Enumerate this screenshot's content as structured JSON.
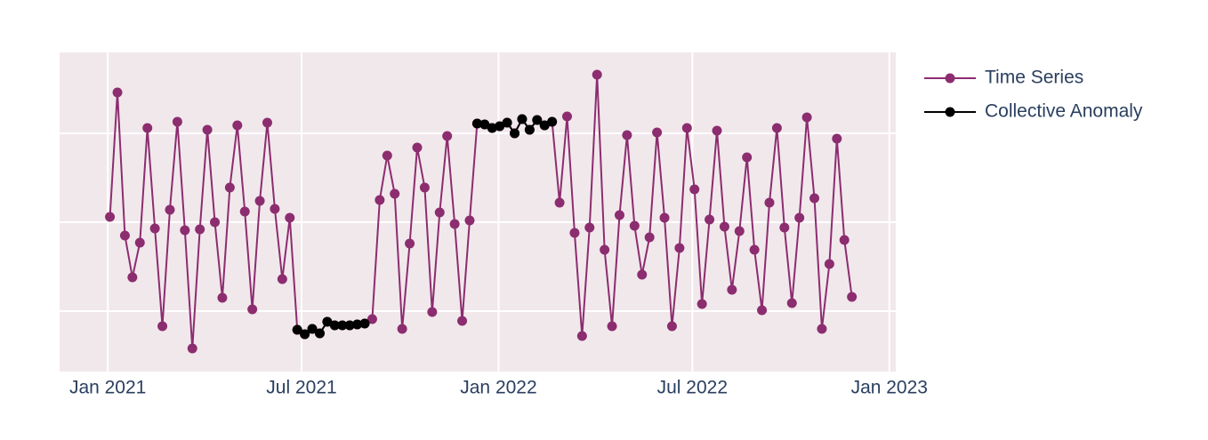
{
  "chart_data": {
    "type": "line",
    "x": [
      "2021-01-03",
      "2021-01-10",
      "2021-01-17",
      "2021-01-24",
      "2021-01-31",
      "2021-02-07",
      "2021-02-14",
      "2021-02-21",
      "2021-02-28",
      "2021-03-07",
      "2021-03-14",
      "2021-03-21",
      "2021-03-28",
      "2021-04-04",
      "2021-04-11",
      "2021-04-18",
      "2021-04-25",
      "2021-05-02",
      "2021-05-09",
      "2021-05-16",
      "2021-05-23",
      "2021-05-30",
      "2021-06-06",
      "2021-06-13",
      "2021-06-20",
      "2021-06-27",
      "2021-07-04",
      "2021-07-11",
      "2021-07-18",
      "2021-07-25",
      "2021-08-01",
      "2021-08-08",
      "2021-08-15",
      "2021-08-22",
      "2021-08-29",
      "2021-09-05",
      "2021-09-12",
      "2021-09-19",
      "2021-09-26",
      "2021-10-03",
      "2021-10-10",
      "2021-10-17",
      "2021-10-24",
      "2021-10-31",
      "2021-11-07",
      "2021-11-14",
      "2021-11-21",
      "2021-11-28",
      "2021-12-05",
      "2021-12-12",
      "2021-12-19",
      "2021-12-26",
      "2022-01-02",
      "2022-01-09",
      "2022-01-16",
      "2022-01-23",
      "2022-01-30",
      "2022-02-06",
      "2022-02-13",
      "2022-02-20",
      "2022-02-27",
      "2022-03-06",
      "2022-03-13",
      "2022-03-20",
      "2022-03-27",
      "2022-04-03",
      "2022-04-10",
      "2022-04-17",
      "2022-04-24",
      "2022-05-01",
      "2022-05-08",
      "2022-05-15",
      "2022-05-22",
      "2022-05-29",
      "2022-06-05",
      "2022-06-12",
      "2022-06-19",
      "2022-06-26",
      "2022-07-03",
      "2022-07-10",
      "2022-07-17",
      "2022-07-24",
      "2022-07-31",
      "2022-08-07",
      "2022-08-14",
      "2022-08-21",
      "2022-08-28",
      "2022-09-04",
      "2022-09-11",
      "2022-09-18",
      "2022-09-25",
      "2022-10-02",
      "2022-10-09",
      "2022-10-16",
      "2022-10-23",
      "2022-10-30",
      "2022-11-06",
      "2022-11-13",
      "2022-11-20",
      "2022-11-27"
    ],
    "series": [
      {
        "name": "Time Series",
        "color": "#8c2d6f",
        "values": [
          2.06,
          3.46,
          1.85,
          1.38,
          1.77,
          3.06,
          1.93,
          0.83,
          2.14,
          3.13,
          1.91,
          0.58,
          1.92,
          3.04,
          2.0,
          1.15,
          2.39,
          3.09,
          2.12,
          1.02,
          2.24,
          3.12,
          2.15,
          1.36,
          2.05,
          0.79,
          0.74,
          0.8,
          0.75,
          0.88,
          0.84,
          0.84,
          0.84,
          0.85,
          0.86,
          0.91,
          2.25,
          2.75,
          2.32,
          0.8,
          1.76,
          2.84,
          2.39,
          0.99,
          2.11,
          2.97,
          1.98,
          0.89,
          2.02,
          3.11,
          3.1,
          3.06,
          3.08,
          3.12,
          3.0,
          3.16,
          3.04,
          3.15,
          3.09,
          3.13,
          2.22,
          3.19,
          1.88,
          0.72,
          1.94,
          3.66,
          1.69,
          0.83,
          2.08,
          2.98,
          1.96,
          1.41,
          1.83,
          3.01,
          2.05,
          0.83,
          1.71,
          3.06,
          2.37,
          1.08,
          2.03,
          3.03,
          1.95,
          1.24,
          1.9,
          2.73,
          1.69,
          1.01,
          2.22,
          3.06,
          1.94,
          1.09,
          2.05,
          3.18,
          2.27,
          0.8,
          1.53,
          2.94,
          1.8,
          1.16
        ]
      },
      {
        "name": "Collective Anomaly",
        "color": "#000000",
        "values": [
          null,
          null,
          null,
          null,
          null,
          null,
          null,
          null,
          null,
          null,
          null,
          null,
          null,
          null,
          null,
          null,
          null,
          null,
          null,
          null,
          null,
          null,
          null,
          null,
          null,
          0.79,
          0.74,
          0.8,
          0.75,
          0.88,
          0.84,
          0.84,
          0.84,
          0.85,
          0.86,
          null,
          null,
          null,
          null,
          null,
          null,
          null,
          null,
          null,
          null,
          null,
          null,
          null,
          null,
          3.11,
          3.1,
          3.06,
          3.08,
          3.12,
          3.0,
          3.16,
          3.04,
          3.15,
          3.09,
          3.13,
          null,
          null,
          null,
          null,
          null,
          null,
          null,
          null,
          null,
          null,
          null,
          null,
          null,
          null,
          null,
          null,
          null,
          null,
          null,
          null,
          null,
          null,
          null,
          null,
          null,
          null,
          null,
          null,
          null,
          null,
          null,
          null,
          null,
          null,
          null,
          null,
          null,
          null,
          null,
          null
        ]
      }
    ],
    "xlim": [
      "2020-11-17",
      "2023-01-07"
    ],
    "xticks": [
      {
        "value": "2021-01-01",
        "label": "Jan 2021"
      },
      {
        "value": "2021-07-01",
        "label": "Jul 2021"
      },
      {
        "value": "2022-01-01",
        "label": "Jan 2022"
      },
      {
        "value": "2022-07-01",
        "label": "Jul 2022"
      },
      {
        "value": "2023-01-01",
        "label": "Jan 2023"
      }
    ],
    "ylim": [
      0.32,
      3.91
    ],
    "yticks": [
      1,
      2,
      3
    ],
    "show_ytick_labels": false,
    "grid": true,
    "legend": "top-right"
  }
}
